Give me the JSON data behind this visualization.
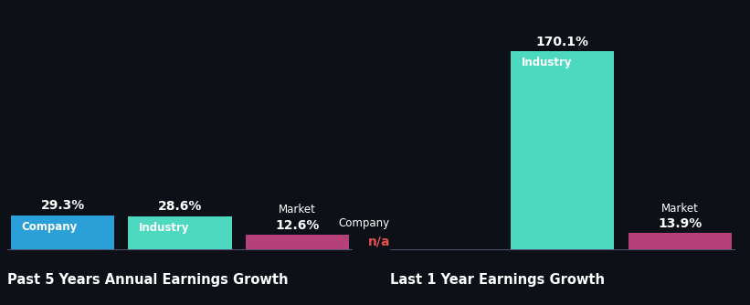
{
  "background_color": "#0d1117",
  "global_max": 170.1,
  "chart1": {
    "title": "Past 5 Years Annual Earnings Growth",
    "bars": [
      {
        "label": "Company",
        "value": 29.3,
        "color": "#2b9fd8",
        "na": false
      },
      {
        "label": "Industry",
        "value": 28.6,
        "color": "#4dd9c0",
        "na": false
      },
      {
        "label": "Market",
        "value": 12.6,
        "color": "#b5407a",
        "na": false
      }
    ]
  },
  "chart2": {
    "title": "Last 1 Year Earnings Growth",
    "bars": [
      {
        "label": "Company",
        "value": 0,
        "color": "#2b9fd8",
        "na": true
      },
      {
        "label": "Industry",
        "value": 170.1,
        "color": "#4dd9c0",
        "na": false
      },
      {
        "label": "Market",
        "value": 13.9,
        "color": "#b5407a",
        "na": false
      }
    ]
  },
  "text_color": "#ffffff",
  "na_color": "#e05050",
  "title_color": "#ffffff",
  "title_fontsize": 10.5,
  "bar_label_fontsize": 8.5,
  "value_label_fontsize": 10,
  "bar_gap": 0.04
}
